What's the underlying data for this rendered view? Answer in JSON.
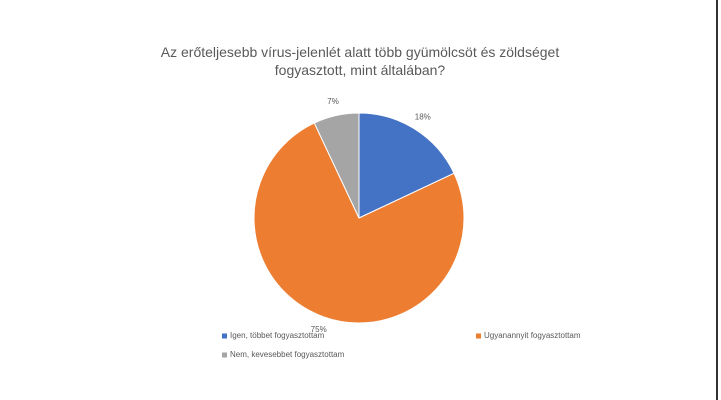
{
  "chart_data": {
    "type": "pie",
    "title": "Az erőteljesebb vírus-jelenlét alatt több gyümölcsöt és zöldséget fogyasztott, mint általában?",
    "categories": [
      "Igen, többet fogyasztottam",
      "Ugyanannyit fogyasztottam",
      "Nem, kevesebbet fogyasztottam"
    ],
    "values": [
      18,
      75,
      7
    ],
    "value_labels": [
      "18%",
      "75%",
      "7%"
    ],
    "colors": [
      "#4472c4",
      "#ed7d31",
      "#a5a5a5"
    ],
    "legend": "bottom"
  }
}
